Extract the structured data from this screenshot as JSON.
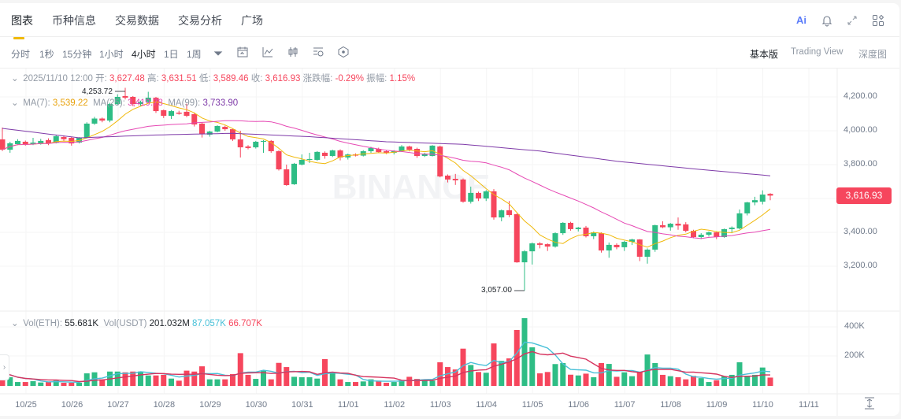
{
  "tabs": [
    {
      "label": "图表",
      "active": true
    },
    {
      "label": "币种信息"
    },
    {
      "label": "交易数据"
    },
    {
      "label": "交易分析"
    },
    {
      "label": "广场"
    }
  ],
  "top_icons": [
    "ai-icon",
    "bell-icon",
    "expand-icon",
    "widgets-icon"
  ],
  "ai_label": "Ai",
  "intervals": [
    {
      "label": "分时"
    },
    {
      "label": "1秒"
    },
    {
      "label": "15分钟"
    },
    {
      "label": "1小时"
    },
    {
      "label": "4小时",
      "active": true
    },
    {
      "label": "1日"
    },
    {
      "label": "1周"
    }
  ],
  "tools": [
    "calendar-icon",
    "indicator-icon",
    "candle-type-icon",
    "settings-icon",
    "hexagon-icon"
  ],
  "views": [
    {
      "label": "基本版",
      "active": true
    },
    {
      "label": "Trading View"
    },
    {
      "label": "深度图"
    }
  ],
  "ohlc": {
    "date": "2025/11/10 12:00",
    "open_label": "开:",
    "open": "3,627.48",
    "high_label": "高:",
    "high": "3,631.51",
    "low_label": "低:",
    "low": "3,589.46",
    "close_label": "收:",
    "close": "3,616.93",
    "change_label": "涨跌幅:",
    "change": "-0.29%",
    "amp_label": "振幅:",
    "amp": "1.15%"
  },
  "ma": {
    "ma7_label": "MA(7):",
    "ma7": "3,539.22",
    "ma25_label": "MA(25):",
    "ma25": "3,419.78",
    "ma99_label": "MA(99):",
    "ma99": "3,733.90"
  },
  "vol": {
    "eth_label": "Vol(ETH):",
    "eth": "55.681K",
    "usdt_label": "Vol(USDT)",
    "usdt": "201.032M",
    "ma5": "87.057K",
    "ma10": "66.707K"
  },
  "price_axis": [
    "4,200.00",
    "4,000.00",
    "3,800.00",
    "3,400.00",
    "3,200.00"
  ],
  "vol_axis": [
    "400K",
    "200K"
  ],
  "current_price": "3,616.93",
  "high_annotation": "4,253.72",
  "low_annotation": "3,057.00",
  "watermark": "BINANCE",
  "colors": {
    "up": "#2EBD85",
    "down": "#F6465D",
    "ma7": "#F0B90B",
    "ma25": "#E649B4",
    "ma99": "#7E3AA8",
    "vol_ma5": "#48C0D8",
    "vol_ma10": "#D6345F",
    "accent": "#F0B90B"
  },
  "chart_data": {
    "type": "candlestick",
    "interval": "4h",
    "x_tick_labels": [
      "10/25",
      "10/26",
      "10/27",
      "10/28",
      "10/29",
      "10/30",
      "10/31",
      "11/01",
      "11/02",
      "11/03",
      "11/04",
      "11/05",
      "11/06",
      "11/07",
      "11/08",
      "11/09",
      "11/10",
      "11/11"
    ],
    "y_ticks": [
      4200,
      4000,
      3800,
      3400,
      3200
    ],
    "ylim": [
      3000,
      4300
    ],
    "vol_ticks": [
      400,
      200
    ],
    "vol_unit": "K",
    "ohlc": [
      [
        3949,
        4019,
        3880,
        3888
      ],
      [
        3888,
        3935,
        3870,
        3926
      ],
      [
        3921,
        3950,
        3915,
        3940
      ],
      [
        3935,
        3942,
        3912,
        3921
      ],
      [
        3921,
        3958,
        3915,
        3930
      ],
      [
        3925,
        3952,
        3918,
        3940
      ],
      [
        3945,
        3955,
        3915,
        3925
      ],
      [
        3930,
        3975,
        3925,
        3968
      ],
      [
        3963,
        3972,
        3940,
        3950
      ],
      [
        3958,
        3965,
        3912,
        3925
      ],
      [
        3930,
        3962,
        3925,
        3958
      ],
      [
        3958,
        4050,
        3955,
        4042
      ],
      [
        4042,
        4082,
        4035,
        4072
      ],
      [
        4072,
        4078,
        4050,
        4060
      ],
      [
        4060,
        4165,
        4050,
        4158
      ],
      [
        4158,
        4215,
        4150,
        4200
      ],
      [
        4205,
        4253.72,
        4185,
        4195
      ],
      [
        4200,
        4205,
        4145,
        4158
      ],
      [
        4158,
        4178,
        4145,
        4170
      ],
      [
        4170,
        4230,
        4165,
        4195
      ],
      [
        4195,
        4200,
        4105,
        4116
      ],
      [
        4121,
        4125,
        4075,
        4088
      ],
      [
        4088,
        4122,
        4070,
        4116
      ],
      [
        4107,
        4118,
        4095,
        4100
      ],
      [
        4112,
        4160,
        4080,
        4088
      ],
      [
        4098,
        4105,
        4025,
        4037
      ],
      [
        4042,
        4048,
        3960,
        3981
      ],
      [
        3977,
        4000,
        3965,
        3995
      ],
      [
        3995,
        4032,
        3990,
        4028
      ],
      [
        4023,
        4030,
        4000,
        4009
      ],
      [
        4009,
        4012,
        3940,
        3949
      ],
      [
        3949,
        4000,
        3842,
        3902
      ],
      [
        3907,
        3915,
        3890,
        3898
      ],
      [
        3902,
        3940,
        3895,
        3935
      ],
      [
        3935,
        3945,
        3870,
        3940
      ],
      [
        3940,
        3945,
        3870,
        3879
      ],
      [
        3879,
        3885,
        3765,
        3772
      ],
      [
        3772,
        3800,
        3675,
        3679
      ],
      [
        3684,
        3810,
        3680,
        3805
      ],
      [
        3800,
        3860,
        3795,
        3828
      ],
      [
        3828,
        3870,
        3810,
        3833
      ],
      [
        3828,
        3880,
        3822,
        3875
      ],
      [
        3870,
        3878,
        3835,
        3851
      ],
      [
        3851,
        3888,
        3845,
        3884
      ],
      [
        3884,
        3890,
        3825,
        3842
      ],
      [
        3842,
        3865,
        3830,
        3860
      ],
      [
        3860,
        3866,
        3848,
        3853
      ],
      [
        3853,
        3885,
        3848,
        3879
      ],
      [
        3879,
        3905,
        3870,
        3898
      ],
      [
        3893,
        3900,
        3868,
        3874
      ],
      [
        3879,
        3885,
        3862,
        3870
      ],
      [
        3870,
        3885,
        3860,
        3879
      ],
      [
        3879,
        3915,
        3875,
        3907
      ],
      [
        3907,
        3912,
        3878,
        3888
      ],
      [
        3893,
        3900,
        3840,
        3851
      ],
      [
        3851,
        3870,
        3845,
        3865
      ],
      [
        3851,
        3915,
        3848,
        3912
      ],
      [
        3907,
        3912,
        3725,
        3730
      ],
      [
        3735,
        3742,
        3695,
        3712
      ],
      [
        3716,
        3745,
        3680,
        3707
      ],
      [
        3712,
        3718,
        3575,
        3581
      ],
      [
        3581,
        3670,
        3570,
        3633
      ],
      [
        3633,
        3640,
        3585,
        3600
      ],
      [
        3600,
        3650,
        3585,
        3642
      ],
      [
        3642,
        3655,
        3475,
        3488
      ],
      [
        3488,
        3535,
        3465,
        3530
      ],
      [
        3530,
        3585,
        3490,
        3502
      ],
      [
        3507,
        3512,
        3220,
        3223
      ],
      [
        3223,
        3295,
        3057,
        3288
      ],
      [
        3288,
        3340,
        3210,
        3335
      ],
      [
        3335,
        3342,
        3305,
        3326
      ],
      [
        3330,
        3335,
        3290,
        3316
      ],
      [
        3316,
        3400,
        3310,
        3395
      ],
      [
        3395,
        3460,
        3385,
        3456
      ],
      [
        3456,
        3462,
        3410,
        3419
      ],
      [
        3419,
        3432,
        3405,
        3428
      ],
      [
        3428,
        3438,
        3370,
        3377
      ],
      [
        3377,
        3405,
        3360,
        3400
      ],
      [
        3395,
        3400,
        3280,
        3293
      ],
      [
        3293,
        3340,
        3250,
        3326
      ],
      [
        3326,
        3335,
        3300,
        3312
      ],
      [
        3312,
        3350,
        3290,
        3344
      ],
      [
        3344,
        3362,
        3325,
        3358
      ],
      [
        3358,
        3360,
        3230,
        3256
      ],
      [
        3256,
        3305,
        3215,
        3298
      ],
      [
        3298,
        3445,
        3285,
        3442
      ],
      [
        3442,
        3465,
        3425,
        3430
      ],
      [
        3430,
        3455,
        3410,
        3451
      ],
      [
        3451,
        3488,
        3415,
        3440
      ],
      [
        3447,
        3460,
        3400,
        3409
      ],
      [
        3409,
        3415,
        3365,
        3372
      ],
      [
        3372,
        3395,
        3360,
        3386
      ],
      [
        3386,
        3405,
        3375,
        3400
      ],
      [
        3400,
        3405,
        3360,
        3372
      ],
      [
        3372,
        3422,
        3368,
        3419
      ],
      [
        3419,
        3435,
        3395,
        3428
      ],
      [
        3423,
        3535,
        3418,
        3512
      ],
      [
        3512,
        3580,
        3500,
        3577
      ],
      [
        3577,
        3610,
        3560,
        3590
      ],
      [
        3581,
        3648,
        3565,
        3623
      ],
      [
        3627.48,
        3631.51,
        3589.46,
        3616.93
      ]
    ],
    "volume_k": [
      90,
      58,
      26,
      26,
      32,
      23,
      26,
      35,
      21,
      21,
      21,
      84,
      91,
      44,
      96,
      96,
      91,
      96,
      96,
      70,
      70,
      74,
      49,
      35,
      102,
      96,
      131,
      44,
      44,
      44,
      79,
      219,
      74,
      47,
      105,
      44,
      154,
      126,
      61,
      58,
      58,
      49,
      179,
      91,
      44,
      26,
      26,
      30,
      44,
      35,
      21,
      26,
      38,
      61,
      47,
      38,
      35,
      158,
      126,
      110,
      249,
      140,
      93,
      88,
      284,
      167,
      184,
      374,
      453,
      258,
      84,
      93,
      146,
      153,
      75,
      70,
      82,
      58,
      153,
      147,
      61,
      91,
      65,
      93,
      210,
      153,
      74,
      65,
      58,
      44,
      67,
      52,
      26,
      38,
      65,
      74,
      158,
      65,
      74,
      123,
      55.681
    ],
    "ma99_samples": [
      4014,
      3958,
      3975,
      3985,
      3965,
      3935,
      3920,
      3880,
      3820,
      3775,
      3733.9
    ]
  }
}
